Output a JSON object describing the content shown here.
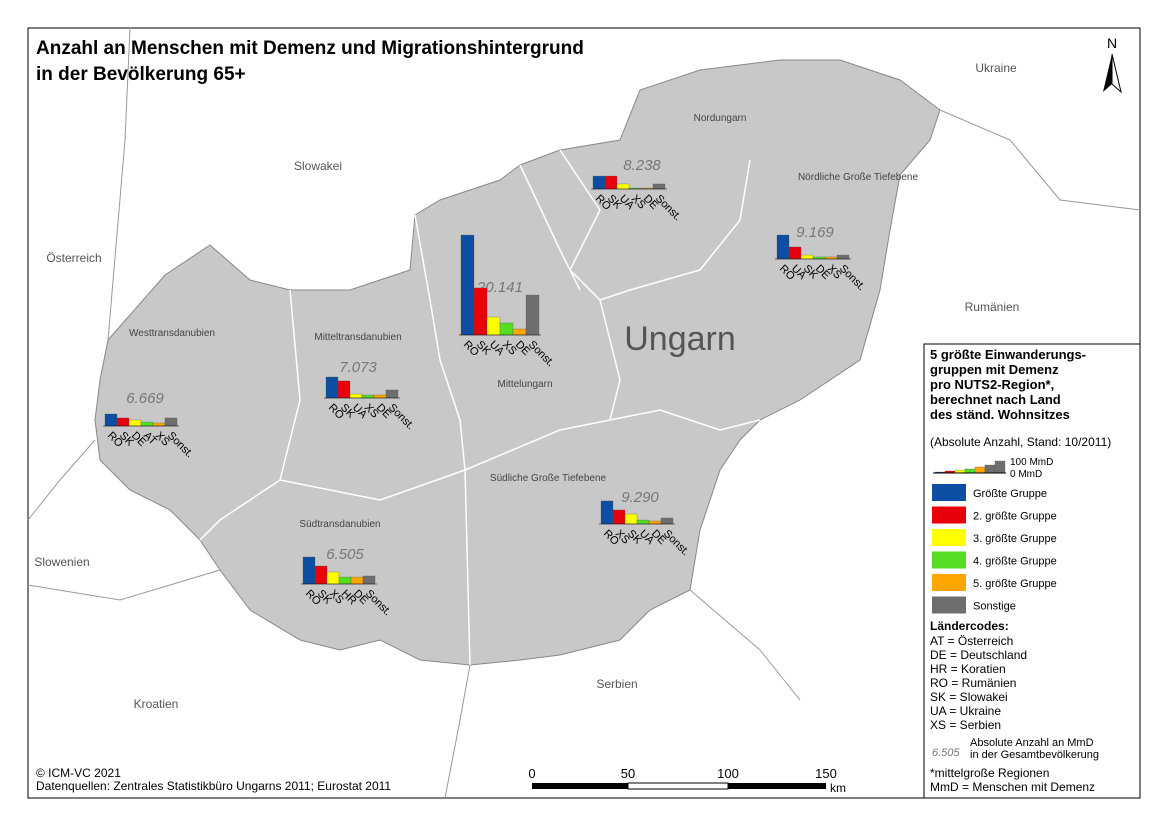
{
  "title": [
    "Anzahl an Menschen mit Demenz und Migrationshintergrund",
    "in der Bevölkerung 65+"
  ],
  "north": "N",
  "countries": [
    "Ukraine",
    "Slowakei",
    "Österreich",
    "Rumänien",
    "Slowenien",
    "Kroatien",
    "Serbien"
  ],
  "country_label": "Ungarn",
  "regions": [
    {
      "name": "Nordungarn",
      "total": "8.238",
      "codes": [
        "RO",
        "SK",
        "UA",
        "XS",
        "DE",
        "Sonst."
      ],
      "values": [
        108,
        108,
        42,
        8,
        8,
        42
      ]
    },
    {
      "name": "Nördliche Große Tiefebene",
      "total": "9.169",
      "codes": [
        "RO",
        "UA",
        "SK",
        "DE",
        "XS",
        "Sonst."
      ],
      "values": [
        200,
        100,
        33,
        17,
        17,
        33
      ]
    },
    {
      "name": "Mittelungarn",
      "total": "20.141",
      "codes": [
        "RO",
        "SK",
        "UA",
        "XS",
        "DE",
        "Sonst."
      ],
      "values": [
        833,
        392,
        150,
        100,
        50,
        333
      ]
    },
    {
      "name": "Mitteltransdanubien",
      "total": "7.073",
      "codes": [
        "RO",
        "SK",
        "UA",
        "XS",
        "DE",
        "Sonst."
      ],
      "values": [
        175,
        142,
        33,
        25,
        25,
        67
      ]
    },
    {
      "name": "Westtransdanubien",
      "total": "6.669",
      "codes": [
        "RO",
        "SK",
        "DE",
        "AT",
        "XS",
        "Sonst."
      ],
      "values": [
        100,
        67,
        50,
        33,
        25,
        67
      ]
    },
    {
      "name": "Südtransdanubien",
      "total": "6.505",
      "codes": [
        "RO",
        "SK",
        "XS",
        "HR",
        "DE",
        "Sonst."
      ],
      "values": [
        225,
        150,
        100,
        58,
        58,
        67
      ]
    },
    {
      "name": "Südliche Große Tiefebene",
      "total": "9.290",
      "codes": [
        "RO",
        "XS",
        "SK",
        "UA",
        "DE",
        "Sonst."
      ],
      "values": [
        192,
        117,
        83,
        33,
        25,
        50
      ]
    }
  ],
  "legend": {
    "title": [
      "5 größte Einwanderungs-",
      "gruppen mit Demenz",
      "pro NUTS2-Region*,",
      "berechnet nach Land",
      "des ständ. Wohnsitzes"
    ],
    "subtitle": "(Absolute Anzahl, Stand: 10/2011)",
    "scale_max_label": "100 MmD",
    "scale_min_label": "0 MmD",
    "groups": [
      {
        "label": "Größte Gruppe",
        "color": "#0b4ea2"
      },
      {
        "label": "2. größte Gruppe",
        "color": "#e8000b"
      },
      {
        "label": "3. größte Gruppe",
        "color": "#ffff00"
      },
      {
        "label": "4. größte Gruppe",
        "color": "#55dd22"
      },
      {
        "label": "5. größte Gruppe",
        "color": "#ffa500"
      },
      {
        "label": "Sonstige",
        "color": "#6e6e6e"
      }
    ],
    "codes_title": "Ländercodes:",
    "codes": [
      "AT = Österreich",
      "DE = Deutschland",
      "HR = Koratien",
      "RO = Rumänien",
      "SK = Slowakei",
      "UA = Ukraine",
      "XS = Serbien"
    ],
    "total_example": "6.505",
    "total_note": [
      "Absolute Anzahl an MmD",
      "in der Gesamtbevölkerung"
    ],
    "notes": [
      "*mittelgroße Regionen",
      "MmD = Menschen mit Demenz"
    ]
  },
  "scalebar": {
    "ticks": [
      "0",
      "50",
      "100",
      "150"
    ],
    "unit": "km"
  },
  "footer": [
    "© ICM-VC 2021",
    "Datenquellen: Zentrales Statistikbüro Ungarns 2011; Eurostat 2011"
  ]
}
